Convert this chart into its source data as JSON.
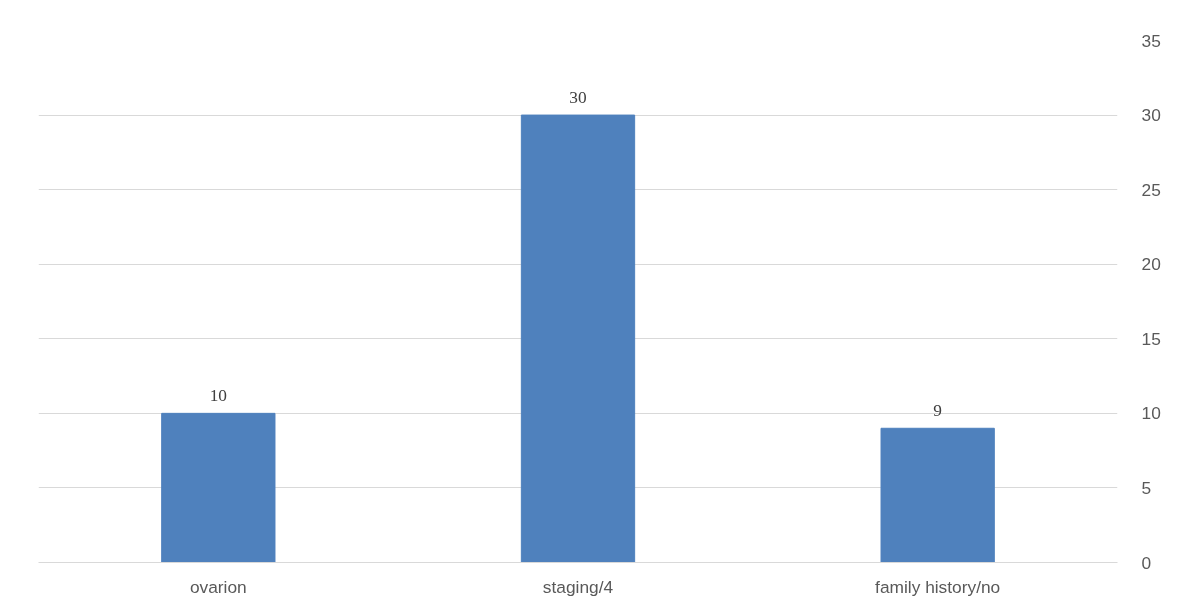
{
  "chart_data": {
    "type": "bar",
    "categories": [
      "ovarion",
      "staging/4",
      "family history/no"
    ],
    "values": [
      10,
      30,
      9
    ],
    "color": "#4f81bd",
    "ylim": [
      0,
      35
    ],
    "yticks": [
      0,
      5,
      10,
      15,
      20,
      25,
      30,
      35
    ],
    "grid": "y",
    "data_labels": true
  }
}
